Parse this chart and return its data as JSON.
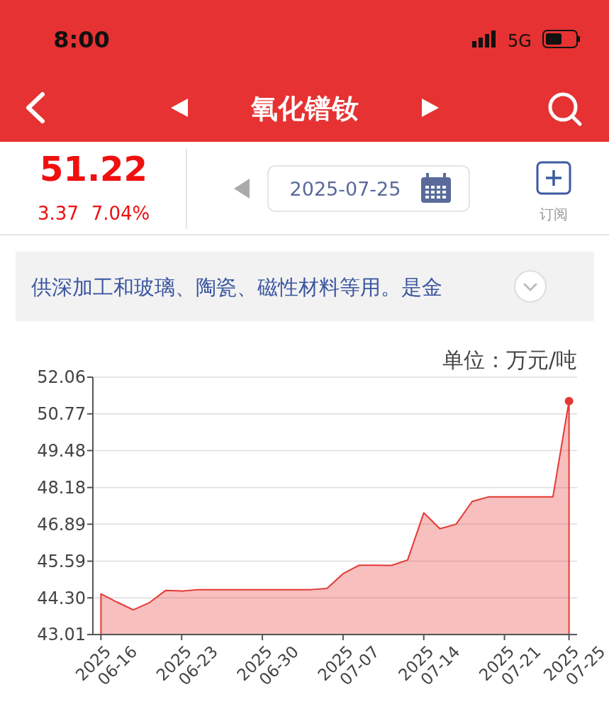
{
  "chart_data": {
    "type": "area",
    "title": "氧化镨钕",
    "ylabel": "单位：万元/吨",
    "annotations": [
      "8:00",
      "5G",
      "51.22",
      "3.37",
      "7.04%",
      "2025-07-25",
      "订阅",
      "供深加工和玻璃、陶瓷、磁性材料等用。是金"
    ],
    "categories": [
      "2025\n06-16",
      null,
      null,
      null,
      null,
      "2025\n06-23",
      null,
      null,
      null,
      null,
      "2025\n06-30",
      null,
      null,
      null,
      null,
      "2025\n07-07",
      null,
      null,
      null,
      null,
      "2025\n07-14",
      null,
      null,
      null,
      null,
      "2025\n07-21",
      null,
      null,
      null,
      "2025\n07-25"
    ],
    "series": [
      {
        "color": "#e53935",
        "marker": "none",
        "values": [
          44.44,
          44.15,
          43.88,
          44.13,
          44.56,
          44.54,
          44.59,
          44.59,
          44.59,
          44.59,
          44.59,
          44.59,
          44.59,
          44.59,
          44.63,
          45.15,
          45.45,
          45.45,
          45.44,
          45.63,
          47.29,
          46.73,
          46.89,
          47.69,
          47.85,
          47.85,
          47.85,
          47.85,
          47.85,
          51.22
        ]
      },
      {
        "type": "scatter",
        "color": "#e53935",
        "marker": "circle",
        "x": [
          "2025\n07-25"
        ],
        "values": [
          51.22
        ]
      }
    ],
    "ylim": [
      43.01,
      52.06
    ],
    "yticks": [
      43.01,
      {
        "value": 44.3,
        "label": "44.30"
      },
      45.59,
      46.89,
      48.18,
      49.48,
      50.77,
      52.06
    ],
    "grid": "y"
  }
}
